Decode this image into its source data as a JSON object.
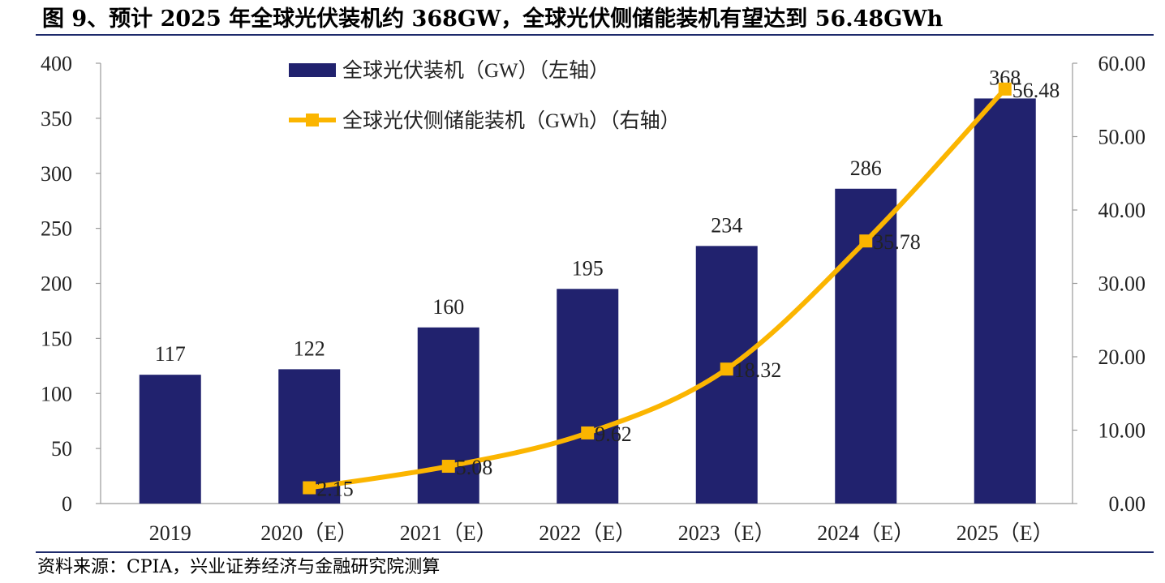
{
  "title": "图 9、预计 2025 年全球光伏装机约 368GW，全球光伏侧储能装机有望达到 56.48GWh",
  "source": "资料来源：CPIA，兴业证券经济与金融研究院测算",
  "colors": {
    "bar": "#21226e",
    "line": "#fbb500",
    "rule": "#1d2a6b"
  },
  "chart_data": {
    "type": "bar+line",
    "categories": [
      "2019",
      "2020（E）",
      "2021（E）",
      "2022（E）",
      "2023（E）",
      "2024（E）",
      "2025（E）"
    ],
    "series": [
      {
        "name": "全球光伏装机（GW）（左轴）",
        "type": "bar",
        "axis": "left",
        "values": [
          117,
          122,
          160,
          195,
          234,
          286,
          368
        ],
        "labels": [
          "117",
          "122",
          "160",
          "195",
          "234",
          "286",
          "368"
        ]
      },
      {
        "name": "全球光伏侧储能装机（GWh）（右轴）",
        "type": "line",
        "axis": "right",
        "marker": "square",
        "values": [
          null,
          2.15,
          5.08,
          9.62,
          18.32,
          35.78,
          56.48
        ],
        "labels": [
          null,
          "2.15",
          "5.08",
          "9.62",
          "18.32",
          "35.78",
          "56.48"
        ]
      }
    ],
    "left_axis": {
      "min": 0,
      "max": 400,
      "ticks": [
        "0",
        "50",
        "100",
        "150",
        "200",
        "250",
        "300",
        "350",
        "400"
      ]
    },
    "right_axis": {
      "min": 0,
      "max": 60,
      "ticks": [
        "0.00",
        "10.00",
        "20.00",
        "30.00",
        "40.00",
        "50.00",
        "60.00"
      ]
    },
    "legend_position": "top-center",
    "grid": false
  }
}
